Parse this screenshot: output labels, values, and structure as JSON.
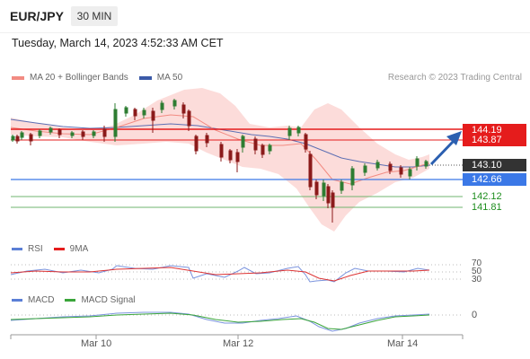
{
  "header": {
    "symbol": "EUR/JPY",
    "timeframe": "30 MIN",
    "datetime": "Tuesday, March 14, 2023 4:52:33 AM CET"
  },
  "legend_main": {
    "ma20_label": "MA 20 + Bollinger Bands",
    "ma50_label": "MA 50",
    "ma20_color": "#f28b82",
    "ma50_color": "#3b5aa8"
  },
  "credit": "Research © 2023 Trading Central",
  "levels": {
    "resistance_1": "144.19",
    "resistance_2": "143.87",
    "current": "143.10",
    "support_line": "142.66",
    "support_1": "142.12",
    "support_2": "141.81",
    "resistance_color": "#e51c1c",
    "current_color": "#333333",
    "support_line_color": "#3b78e7",
    "support_color": "#1e8e1e"
  },
  "legend_rsi": {
    "rsi_label": "RSI",
    "ma9_label": "9MA",
    "rsi_color": "#5b7fd6",
    "ma9_color": "#e51c1c"
  },
  "rsi_axis": {
    "l70": "70",
    "l50": "50",
    "l30": "30"
  },
  "legend_macd": {
    "macd_label": "MACD",
    "signal_label": "MACD Signal",
    "macd_color": "#5b7fd6",
    "signal_color": "#3aa53a"
  },
  "macd_axis": {
    "zero": "0"
  },
  "x_axis": {
    "d1": "Mar 10",
    "d2": "Mar 12",
    "d3": "Mar 14"
  }
}
